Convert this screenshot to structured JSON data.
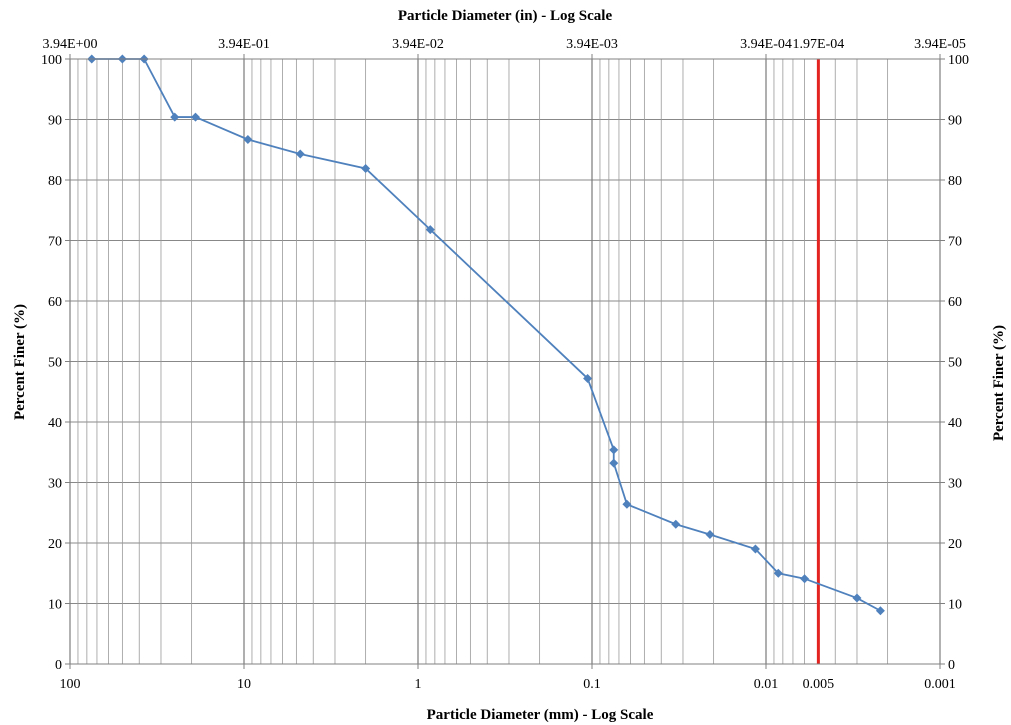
{
  "chart_data": {
    "type": "scatter",
    "title": "",
    "xlabel": "Particle Diameter (mm) - Log Scale",
    "x2label": "Particle Diameter (in) - Log Scale",
    "ylabel": "Percent Finer (%)",
    "y2label": "Percent Finer (%)",
    "x_scale": "log",
    "x_reversed": true,
    "xlim": [
      100,
      0.001
    ],
    "ylim": [
      0,
      100
    ],
    "y_ticks": [
      0,
      10,
      20,
      30,
      40,
      50,
      60,
      70,
      80,
      90,
      100
    ],
    "x_major_ticks": [
      100,
      10,
      1,
      0.1,
      0.01,
      0.001
    ],
    "x_bottom_tick_labels": [
      {
        "value": 100,
        "label": "100"
      },
      {
        "value": 10,
        "label": "10"
      },
      {
        "value": 1,
        "label": "1"
      },
      {
        "value": 0.1,
        "label": "0.1"
      },
      {
        "value": 0.01,
        "label": "0.01"
      },
      {
        "value": 0.005,
        "label": "0.005"
      },
      {
        "value": 0.001,
        "label": "0.001"
      }
    ],
    "x_top_tick_labels": [
      {
        "value": 100,
        "label": "3.94E+00"
      },
      {
        "value": 10,
        "label": "3.94E-01"
      },
      {
        "value": 1,
        "label": "3.94E-02"
      },
      {
        "value": 0.1,
        "label": "3.94E-03"
      },
      {
        "value": 0.01,
        "label": "3.94E-04"
      },
      {
        "value": 0.005,
        "label": "1.97E-04"
      },
      {
        "value": 0.001,
        "label": "3.94E-05"
      }
    ],
    "grid": true,
    "series": [
      {
        "color": "#4f81bd",
        "marker": "diamond",
        "x": [
          75,
          50,
          37.5,
          25,
          19,
          9.5,
          4.75,
          2,
          0.85,
          0.106,
          0.075,
          0.075,
          0.063,
          0.033,
          0.021,
          0.0115,
          0.0085,
          0.006,
          0.003,
          0.0022
        ],
        "y": [
          100,
          100,
          100,
          90.4,
          90.4,
          86.7,
          84.3,
          81.9,
          71.8,
          47.2,
          35.4,
          33.2,
          26.4,
          23.1,
          21.4,
          19.0,
          15.0,
          14.1,
          10.9,
          8.8
        ]
      }
    ],
    "reference_lines": [
      {
        "axis": "x",
        "value": 0.005,
        "color": "#e3231f"
      }
    ]
  }
}
